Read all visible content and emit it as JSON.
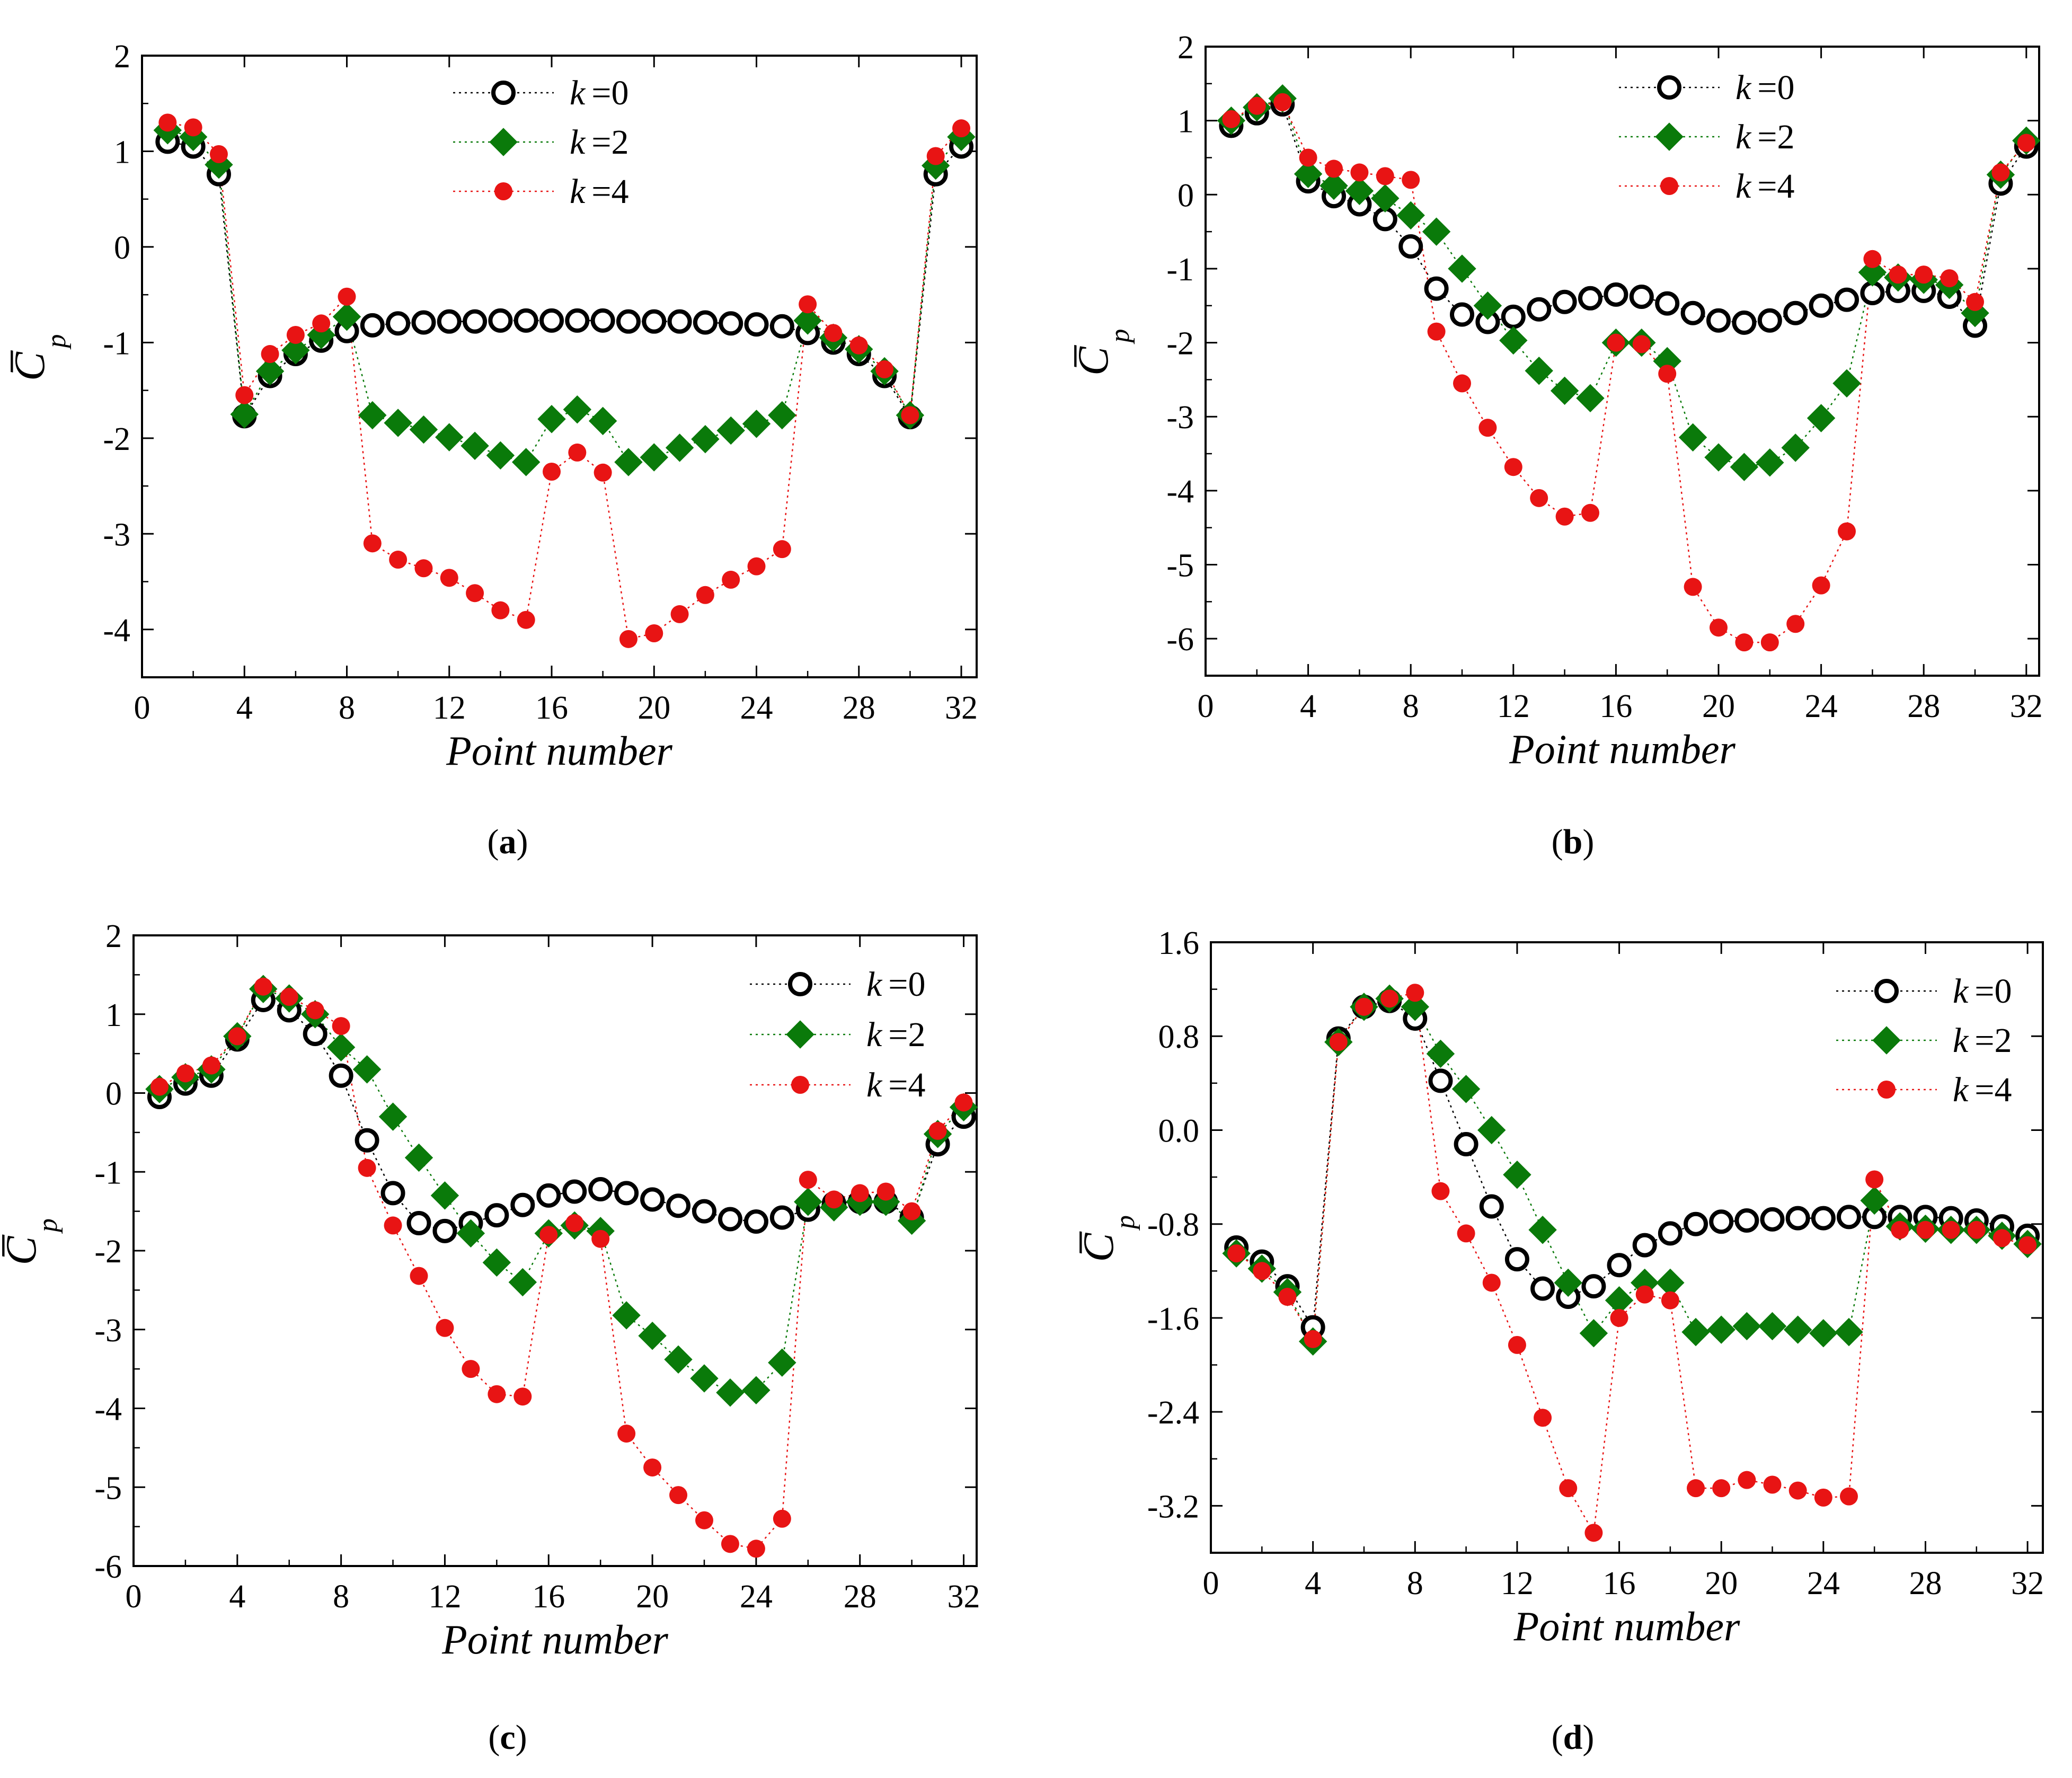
{
  "figure": {
    "panel_labels": [
      "a",
      "b",
      "c",
      "d"
    ]
  },
  "colors": {
    "k0": "#000000",
    "k2": "#0a7a0a",
    "k4": "#e81414",
    "axis": "#000000"
  },
  "chart_data": [
    {
      "panel": "a",
      "type": "scatter",
      "title": "",
      "xlabel": "Point number",
      "ylabel": "C̅",
      "ylabel_sub": "p",
      "xlim": [
        0,
        32.6
      ],
      "ylim": [
        -4.5,
        2
      ],
      "xticks": [
        0,
        4,
        8,
        12,
        16,
        20,
        24,
        28,
        32
      ],
      "yticks": [
        2,
        1,
        0,
        -1,
        -2,
        -3,
        -4
      ],
      "ytick_labels": [
        "2",
        "1",
        "0",
        "-1",
        "-2",
        "-3",
        "-4"
      ],
      "legend_position": "top-center",
      "series": [
        {
          "name": "k =0",
          "k": "k",
          "kval": "=0",
          "marker": "circle-open",
          "color": "#000000",
          "x": [
            1,
            2,
            3,
            4,
            5,
            6,
            7,
            8,
            9,
            10,
            11,
            12,
            13,
            14,
            15,
            16,
            17,
            18,
            19,
            20,
            21,
            22,
            23,
            24,
            25,
            26,
            27,
            28,
            29,
            30,
            31,
            32
          ],
          "y": [
            1.1,
            1.05,
            0.76,
            -1.77,
            -1.35,
            -1.12,
            -0.98,
            -0.88,
            -0.82,
            -0.8,
            -0.79,
            -0.78,
            -0.78,
            -0.77,
            -0.77,
            -0.77,
            -0.77,
            -0.77,
            -0.78,
            -0.78,
            -0.78,
            -0.79,
            -0.8,
            -0.81,
            -0.83,
            -0.9,
            -1.0,
            -1.12,
            -1.35,
            -1.78,
            0.76,
            1.05
          ]
        },
        {
          "name": "k =2",
          "k": "k",
          "kval": "=2",
          "marker": "diamond",
          "color": "#0a7a0a",
          "x": [
            1,
            2,
            3,
            4,
            5,
            6,
            7,
            8,
            9,
            10,
            11,
            12,
            13,
            14,
            15,
            16,
            17,
            18,
            19,
            20,
            21,
            22,
            23,
            24,
            25,
            26,
            27,
            28,
            29,
            30,
            31,
            32
          ],
          "y": [
            1.22,
            1.15,
            0.86,
            -1.75,
            -1.3,
            -1.08,
            -0.92,
            -0.73,
            -1.76,
            -1.84,
            -1.91,
            -1.99,
            -2.08,
            -2.18,
            -2.25,
            -1.8,
            -1.7,
            -1.82,
            -2.25,
            -2.2,
            -2.1,
            -2.01,
            -1.92,
            -1.85,
            -1.76,
            -0.77,
            -0.95,
            -1.07,
            -1.3,
            -1.76,
            0.85,
            1.15
          ]
        },
        {
          "name": "k =4",
          "k": "k",
          "kval": "=4",
          "marker": "dot",
          "color": "#e81414",
          "x": [
            1,
            2,
            3,
            4,
            5,
            6,
            7,
            8,
            9,
            10,
            11,
            12,
            13,
            14,
            15,
            16,
            17,
            18,
            19,
            20,
            21,
            22,
            23,
            24,
            25,
            26,
            27,
            28,
            29,
            30,
            31,
            32
          ],
          "y": [
            1.3,
            1.25,
            0.97,
            -1.55,
            -1.12,
            -0.92,
            -0.8,
            -0.52,
            -3.1,
            -3.27,
            -3.36,
            -3.46,
            -3.62,
            -3.8,
            -3.9,
            -2.35,
            -2.15,
            -2.36,
            -4.1,
            -4.04,
            -3.84,
            -3.64,
            -3.48,
            -3.34,
            -3.16,
            -0.6,
            -0.9,
            -1.03,
            -1.28,
            -1.76,
            0.95,
            1.24
          ]
        }
      ]
    },
    {
      "panel": "b",
      "type": "scatter",
      "title": "",
      "xlabel": "Point number",
      "ylabel": "C̅",
      "ylabel_sub": "p",
      "xlim": [
        0,
        32.5
      ],
      "ylim": [
        -6.5,
        2
      ],
      "xticks": [
        0,
        4,
        8,
        12,
        16,
        20,
        24,
        28,
        32
      ],
      "yticks": [
        2,
        1,
        0,
        -1,
        -2,
        -3,
        -4,
        -5,
        -6
      ],
      "ytick_labels": [
        "2",
        "1",
        "0",
        "-1",
        "-2",
        "-3",
        "-4",
        "-5",
        "-6"
      ],
      "legend_position": "top-center",
      "series": [
        {
          "name": "k =0",
          "k": "k",
          "kval": "=0",
          "marker": "circle-open",
          "color": "#000000",
          "x": [
            1,
            2,
            3,
            4,
            5,
            6,
            7,
            8,
            9,
            10,
            11,
            12,
            13,
            14,
            15,
            16,
            17,
            18,
            19,
            20,
            21,
            22,
            23,
            24,
            25,
            26,
            27,
            28,
            29,
            30,
            31,
            32
          ],
          "y": [
            0.93,
            1.1,
            1.22,
            0.18,
            -0.02,
            -0.13,
            -0.33,
            -0.7,
            -1.27,
            -1.62,
            -1.72,
            -1.65,
            -1.55,
            -1.45,
            -1.4,
            -1.35,
            -1.38,
            -1.47,
            -1.6,
            -1.7,
            -1.73,
            -1.7,
            -1.6,
            -1.5,
            -1.42,
            -1.33,
            -1.3,
            -1.3,
            -1.38,
            -1.77,
            0.15,
            0.65
          ]
        },
        {
          "name": "k =2",
          "k": "k",
          "kval": "=2",
          "marker": "diamond",
          "color": "#0a7a0a",
          "x": [
            1,
            2,
            3,
            4,
            5,
            6,
            7,
            8,
            9,
            10,
            11,
            12,
            13,
            14,
            15,
            16,
            17,
            18,
            19,
            20,
            21,
            22,
            23,
            24,
            25,
            26,
            27,
            28,
            29,
            30,
            31,
            32
          ],
          "y": [
            1.0,
            1.18,
            1.3,
            0.28,
            0.12,
            0.05,
            -0.05,
            -0.28,
            -0.5,
            -1.0,
            -1.5,
            -1.97,
            -2.38,
            -2.65,
            -2.75,
            -2.0,
            -2.0,
            -2.25,
            -3.28,
            -3.55,
            -3.68,
            -3.62,
            -3.42,
            -3.02,
            -2.55,
            -1.05,
            -1.12,
            -1.15,
            -1.22,
            -1.6,
            0.27,
            0.73
          ]
        },
        {
          "name": "k =4",
          "k": "k",
          "kval": "=4",
          "marker": "dot",
          "color": "#e81414",
          "x": [
            1,
            2,
            3,
            4,
            5,
            6,
            7,
            8,
            9,
            10,
            11,
            12,
            13,
            14,
            15,
            16,
            17,
            18,
            19,
            20,
            21,
            22,
            23,
            24,
            25,
            26,
            27,
            28,
            29,
            30,
            31,
            32
          ],
          "y": [
            1.02,
            1.2,
            1.25,
            0.5,
            0.35,
            0.3,
            0.25,
            0.2,
            -1.85,
            -2.55,
            -3.15,
            -3.68,
            -4.1,
            -4.35,
            -4.3,
            -2.0,
            -2.02,
            -2.42,
            -5.3,
            -5.85,
            -6.05,
            -6.05,
            -5.8,
            -5.28,
            -4.55,
            -0.87,
            -1.08,
            -1.08,
            -1.13,
            -1.45,
            0.3,
            0.7
          ]
        }
      ]
    },
    {
      "panel": "c",
      "type": "scatter",
      "title": "",
      "xlabel": "Point number",
      "ylabel": "C̅",
      "ylabel_sub": "p",
      "xlim": [
        0,
        32.5
      ],
      "ylim": [
        -6,
        2
      ],
      "xticks": [
        0,
        4,
        8,
        12,
        16,
        20,
        24,
        28,
        32
      ],
      "yticks": [
        2,
        1,
        0,
        -1,
        -2,
        -3,
        -4,
        -5,
        -6
      ],
      "ytick_labels": [
        "2",
        "1",
        "0",
        "-1",
        "-2",
        "-3",
        "-4",
        "-5",
        "-6"
      ],
      "legend_position": "top-right",
      "series": [
        {
          "name": "k =0",
          "k": "k",
          "kval": "=0",
          "marker": "circle-open",
          "color": "#000000",
          "x": [
            1,
            2,
            3,
            4,
            5,
            6,
            7,
            8,
            9,
            10,
            11,
            12,
            13,
            14,
            15,
            16,
            17,
            18,
            19,
            20,
            21,
            22,
            23,
            24,
            25,
            26,
            27,
            28,
            29,
            30,
            31,
            32
          ],
          "y": [
            -0.05,
            0.12,
            0.22,
            0.68,
            1.18,
            1.05,
            0.75,
            0.22,
            -0.6,
            -1.27,
            -1.65,
            -1.75,
            -1.65,
            -1.55,
            -1.42,
            -1.3,
            -1.25,
            -1.22,
            -1.27,
            -1.35,
            -1.43,
            -1.5,
            -1.6,
            -1.63,
            -1.58,
            -1.48,
            -1.4,
            -1.38,
            -1.38,
            -1.58,
            -0.65,
            -0.3
          ]
        },
        {
          "name": "k =2",
          "k": "k",
          "kval": "=2",
          "marker": "diamond",
          "color": "#0a7a0a",
          "x": [
            1,
            2,
            3,
            4,
            5,
            6,
            7,
            8,
            9,
            10,
            11,
            12,
            13,
            14,
            15,
            16,
            17,
            18,
            19,
            20,
            21,
            22,
            23,
            24,
            25,
            26,
            27,
            28,
            29,
            30,
            31,
            32
          ],
          "y": [
            0.05,
            0.2,
            0.3,
            0.72,
            1.32,
            1.2,
            1.0,
            0.58,
            0.3,
            -0.3,
            -0.82,
            -1.3,
            -1.78,
            -2.15,
            -2.4,
            -1.78,
            -1.68,
            -1.75,
            -2.82,
            -3.08,
            -3.38,
            -3.62,
            -3.8,
            -3.77,
            -3.42,
            -1.38,
            -1.45,
            -1.38,
            -1.38,
            -1.62,
            -0.52,
            -0.18
          ]
        },
        {
          "name": "k =4",
          "k": "k",
          "kval": "=4",
          "marker": "dot",
          "color": "#e81414",
          "x": [
            1,
            2,
            3,
            4,
            5,
            6,
            7,
            8,
            9,
            10,
            11,
            12,
            13,
            14,
            15,
            16,
            17,
            18,
            19,
            20,
            21,
            22,
            23,
            24,
            25,
            26,
            27,
            28,
            29,
            30,
            31,
            32
          ],
          "y": [
            0.08,
            0.25,
            0.35,
            0.72,
            1.35,
            1.22,
            1.05,
            0.85,
            -0.95,
            -1.68,
            -2.32,
            -2.98,
            -3.5,
            -3.82,
            -3.85,
            -1.8,
            -1.65,
            -1.85,
            -4.32,
            -4.75,
            -5.1,
            -5.42,
            -5.72,
            -5.78,
            -5.4,
            -1.1,
            -1.35,
            -1.27,
            -1.25,
            -1.5,
            -0.48,
            -0.12
          ]
        }
      ]
    },
    {
      "panel": "d",
      "type": "scatter",
      "title": "",
      "xlabel": "Point number",
      "ylabel": "C̅",
      "ylabel_sub": "p",
      "xlim": [
        0,
        32.6
      ],
      "ylim": [
        -3.6,
        1.6
      ],
      "xticks": [
        0,
        4,
        8,
        12,
        16,
        20,
        24,
        28,
        32
      ],
      "yticks": [
        1.6,
        0.8,
        0,
        -0.8,
        -1.6,
        -2.4,
        -3.2
      ],
      "ytick_labels": [
        "1.6",
        "0.8",
        "0.0",
        "-0.8",
        "-1.6",
        "-2.4",
        "-3.2"
      ],
      "legend_position": "top-right",
      "series": [
        {
          "name": "k =0",
          "k": "k",
          "kval": "=0",
          "marker": "circle-open",
          "color": "#000000",
          "x": [
            1,
            2,
            3,
            4,
            5,
            6,
            7,
            8,
            9,
            10,
            11,
            12,
            13,
            14,
            15,
            16,
            17,
            18,
            19,
            20,
            21,
            22,
            23,
            24,
            25,
            26,
            27,
            28,
            29,
            30,
            31,
            32
          ],
          "y": [
            -1.0,
            -1.12,
            -1.33,
            -1.68,
            0.78,
            1.05,
            1.1,
            0.95,
            0.42,
            -0.12,
            -0.65,
            -1.1,
            -1.35,
            -1.42,
            -1.33,
            -1.15,
            -0.98,
            -0.88,
            -0.8,
            -0.78,
            -0.77,
            -0.76,
            -0.75,
            -0.75,
            -0.74,
            -0.74,
            -0.74,
            -0.74,
            -0.75,
            -0.77,
            -0.82,
            -0.9
          ]
        },
        {
          "name": "k =2",
          "k": "k",
          "kval": "=2",
          "marker": "diamond",
          "color": "#0a7a0a",
          "x": [
            1,
            2,
            3,
            4,
            5,
            6,
            7,
            8,
            9,
            10,
            11,
            12,
            13,
            14,
            15,
            16,
            17,
            18,
            19,
            20,
            21,
            22,
            23,
            24,
            25,
            26,
            27,
            28,
            29,
            30,
            31,
            32
          ],
          "y": [
            -1.05,
            -1.18,
            -1.38,
            -1.8,
            0.75,
            1.05,
            1.12,
            1.05,
            0.65,
            0.35,
            0.0,
            -0.38,
            -0.85,
            -1.3,
            -1.73,
            -1.45,
            -1.3,
            -1.3,
            -1.72,
            -1.7,
            -1.67,
            -1.67,
            -1.7,
            -1.73,
            -1.72,
            -0.6,
            -0.82,
            -0.84,
            -0.85,
            -0.85,
            -0.9,
            -0.97
          ]
        },
        {
          "name": "k =4",
          "k": "k",
          "kval": "=4",
          "marker": "dot",
          "color": "#e81414",
          "x": [
            1,
            2,
            3,
            4,
            5,
            6,
            7,
            8,
            9,
            10,
            11,
            12,
            13,
            14,
            15,
            16,
            17,
            18,
            19,
            20,
            21,
            22,
            23,
            24,
            25,
            26,
            27,
            28,
            29,
            30,
            31,
            32
          ],
          "y": [
            -1.05,
            -1.2,
            -1.42,
            -1.78,
            0.75,
            1.05,
            1.12,
            1.17,
            -0.52,
            -0.88,
            -1.3,
            -1.83,
            -2.45,
            -3.05,
            -3.43,
            -1.6,
            -1.4,
            -1.45,
            -3.05,
            -3.05,
            -2.98,
            -3.02,
            -3.07,
            -3.13,
            -3.12,
            -0.42,
            -0.85,
            -0.85,
            -0.85,
            -0.85,
            -0.92,
            -0.98
          ]
        }
      ]
    }
  ]
}
